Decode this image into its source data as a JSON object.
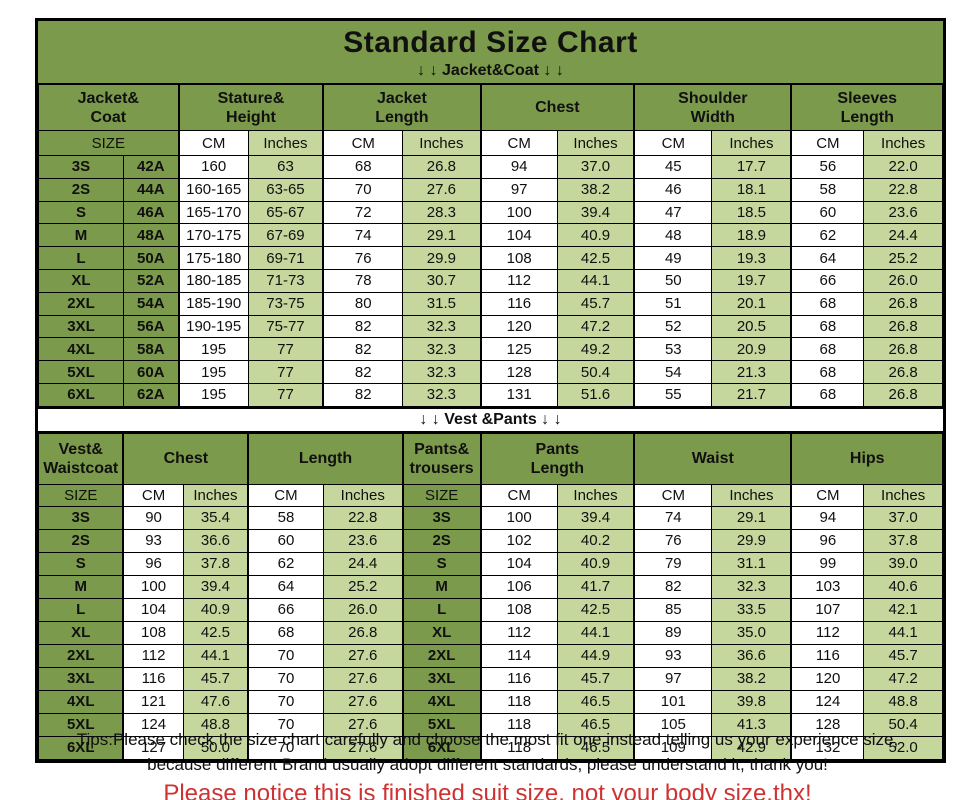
{
  "page": {
    "title": "Standard Size Chart",
    "jacket_band_label": "↓ ↓  Jacket&Coat ↓ ↓",
    "vest_band_label": "↓ ↓  Vest &Pants ↓ ↓"
  },
  "labels": {
    "size": "SIZE",
    "cm": "CM",
    "inches": "Inches"
  },
  "jacket_table": {
    "group_headers": [
      "Jacket&\nCoat",
      "Stature&\nHeight",
      "Jacket\nLength",
      "Chest",
      "Shoulder\nWidth",
      "Sleeves\nLength"
    ],
    "rows": [
      [
        "3S",
        "42A",
        "160",
        "63",
        "68",
        "26.8",
        "94",
        "37.0",
        "45",
        "17.7",
        "56",
        "22.0"
      ],
      [
        "2S",
        "44A",
        "160-165",
        "63-65",
        "70",
        "27.6",
        "97",
        "38.2",
        "46",
        "18.1",
        "58",
        "22.8"
      ],
      [
        "S",
        "46A",
        "165-170",
        "65-67",
        "72",
        "28.3",
        "100",
        "39.4",
        "47",
        "18.5",
        "60",
        "23.6"
      ],
      [
        "M",
        "48A",
        "170-175",
        "67-69",
        "74",
        "29.1",
        "104",
        "40.9",
        "48",
        "18.9",
        "62",
        "24.4"
      ],
      [
        "L",
        "50A",
        "175-180",
        "69-71",
        "76",
        "29.9",
        "108",
        "42.5",
        "49",
        "19.3",
        "64",
        "25.2"
      ],
      [
        "XL",
        "52A",
        "180-185",
        "71-73",
        "78",
        "30.7",
        "112",
        "44.1",
        "50",
        "19.7",
        "66",
        "26.0"
      ],
      [
        "2XL",
        "54A",
        "185-190",
        "73-75",
        "80",
        "31.5",
        "116",
        "45.7",
        "51",
        "20.1",
        "68",
        "26.8"
      ],
      [
        "3XL",
        "56A",
        "190-195",
        "75-77",
        "82",
        "32.3",
        "120",
        "47.2",
        "52",
        "20.5",
        "68",
        "26.8"
      ],
      [
        "4XL",
        "58A",
        "195",
        "77",
        "82",
        "32.3",
        "125",
        "49.2",
        "53",
        "20.9",
        "68",
        "26.8"
      ],
      [
        "5XL",
        "60A",
        "195",
        "77",
        "82",
        "32.3",
        "128",
        "50.4",
        "54",
        "21.3",
        "68",
        "26.8"
      ],
      [
        "6XL",
        "62A",
        "195",
        "77",
        "82",
        "32.3",
        "131",
        "51.6",
        "55",
        "21.7",
        "68",
        "26.8"
      ]
    ]
  },
  "vest_table": {
    "group_headers": [
      "Vest&\nWaistcoat",
      "Chest",
      "Length",
      "Pants&\ntrousers",
      "Pants\nLength",
      "Waist",
      "Hips"
    ],
    "rows": [
      [
        "3S",
        "90",
        "35.4",
        "58",
        "22.8",
        "3S",
        "100",
        "39.4",
        "74",
        "29.1",
        "94",
        "37.0"
      ],
      [
        "2S",
        "93",
        "36.6",
        "60",
        "23.6",
        "2S",
        "102",
        "40.2",
        "76",
        "29.9",
        "96",
        "37.8"
      ],
      [
        "S",
        "96",
        "37.8",
        "62",
        "24.4",
        "S",
        "104",
        "40.9",
        "79",
        "31.1",
        "99",
        "39.0"
      ],
      [
        "M",
        "100",
        "39.4",
        "64",
        "25.2",
        "M",
        "106",
        "41.7",
        "82",
        "32.3",
        "103",
        "40.6"
      ],
      [
        "L",
        "104",
        "40.9",
        "66",
        "26.0",
        "L",
        "108",
        "42.5",
        "85",
        "33.5",
        "107",
        "42.1"
      ],
      [
        "XL",
        "108",
        "42.5",
        "68",
        "26.8",
        "XL",
        "112",
        "44.1",
        "89",
        "35.0",
        "112",
        "44.1"
      ],
      [
        "2XL",
        "112",
        "44.1",
        "70",
        "27.6",
        "2XL",
        "114",
        "44.9",
        "93",
        "36.6",
        "116",
        "45.7"
      ],
      [
        "3XL",
        "116",
        "45.7",
        "70",
        "27.6",
        "3XL",
        "116",
        "45.7",
        "97",
        "38.2",
        "120",
        "47.2"
      ],
      [
        "4XL",
        "121",
        "47.6",
        "70",
        "27.6",
        "4XL",
        "118",
        "46.5",
        "101",
        "39.8",
        "124",
        "48.8"
      ],
      [
        "5XL",
        "124",
        "48.8",
        "70",
        "27.6",
        "5XL",
        "118",
        "46.5",
        "105",
        "41.3",
        "128",
        "50.4"
      ],
      [
        "6XL",
        "127",
        "50.0",
        "70",
        "27.6",
        "6XL",
        "118",
        "46.5",
        "109",
        "42.9",
        "132",
        "52.0"
      ]
    ]
  },
  "tips": {
    "line1": "Tips:Please check the size chart carefully and choose the most fit one instead telling us your experience size,",
    "line2": "because different Brand usually adopt different standards, please understand it, thank you!",
    "notice": "Please notice this is finished suit size, not your body size,thx!"
  },
  "colors": {
    "olive_green": "#7c9a4b",
    "light_green": "#c5d79d",
    "cell_white": "#ffffff",
    "notice_red": "#cf3232",
    "border_black": "#000000"
  }
}
